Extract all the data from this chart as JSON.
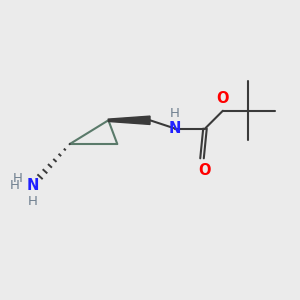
{
  "bg_color": "#ebebeb",
  "bond_color": "#3a3a3a",
  "N_color": "#2020ff",
  "O_color": "#ff0000",
  "H_color": "#708090",
  "figsize": [
    3.0,
    3.0
  ],
  "dpi": 100,
  "xlim": [
    0,
    10
  ],
  "ylim": [
    0,
    10
  ]
}
